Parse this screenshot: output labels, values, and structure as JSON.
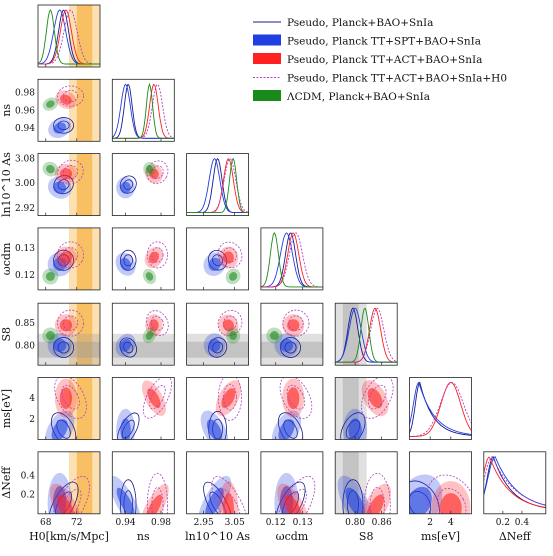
{
  "chart_data": {
    "type": "triangle-corner",
    "parameters": [
      {
        "key": "H0",
        "label": "H0[km/s/Mpc]",
        "ticks": [
          "68",
          "72"
        ],
        "range": [
          67,
          75
        ]
      },
      {
        "key": "ns",
        "label": "ns",
        "ticks": [
          "0.94",
          "0.98"
        ],
        "range": [
          0.925,
          0.995
        ]
      },
      {
        "key": "lnAs",
        "label": "ln10^10 As",
        "ticks": [
          "2.95",
          "3.05"
        ],
        "range": [
          2.895,
          3.095
        ]
      },
      {
        "key": "wcdm",
        "label": "ωcdm",
        "ticks": [
          "0.12",
          "0.13"
        ],
        "range": [
          0.1145,
          0.1375
        ]
      },
      {
        "key": "S8",
        "label": "S8",
        "ticks": [
          "0.80",
          "0.86"
        ],
        "range": [
          0.755,
          0.895
        ]
      },
      {
        "key": "ms",
        "label": "ms[eV]",
        "ticks": [
          "2",
          "4"
        ],
        "range": [
          0,
          6
        ]
      },
      {
        "key": "dNeff",
        "label": "ΔNeff",
        "ticks": [
          "0.2",
          "0.4"
        ],
        "range": [
          0,
          0.65
        ]
      }
    ],
    "row_ticks": {
      "ns": [
        "0.98",
        "0.96",
        "0.94"
      ],
      "lnAs": [
        "3.08",
        "3.00",
        "2.92"
      ],
      "wcdm": [
        "0.13",
        "0.12"
      ],
      "S8": [
        "0.85",
        "0.80"
      ],
      "ms": [
        "4",
        "2"
      ],
      "dNeff": [
        "0.4",
        "0.2"
      ]
    },
    "series": [
      {
        "name": "Pseudo, Planck+BAO+SnIa",
        "color": "#1a1a8c",
        "style": "line",
        "mean": {
          "H0": 70.3,
          "ns": 0.943,
          "lnAs": 2.995,
          "wcdm": 0.1255,
          "S8": 0.795,
          "ms": 1.0,
          "dNeff": 0.1
        }
      },
      {
        "name": "Pseudo, Planck TT+SPT+BAO+SnIa",
        "color": "#1f3fe0",
        "style": "filled",
        "mean": {
          "H0": 69.8,
          "ns": 0.94,
          "lnAs": 2.985,
          "wcdm": 0.124,
          "S8": 0.8,
          "ms": 0.9,
          "dNeff": 0.12
        }
      },
      {
        "name": "Pseudo, Planck TT+ACT+BAO+SnIa",
        "color": "#ff2020",
        "style": "filled",
        "mean": {
          "H0": 70.6,
          "ns": 0.972,
          "lnAs": 3.03,
          "wcdm": 0.1265,
          "S8": 0.845,
          "ms": 4.0,
          "dNeff": 0.06
        }
      },
      {
        "name": "Pseudo, Planck TT+ACT+BAO+SnIa+H0",
        "color": "#b040c0",
        "style": "dashed",
        "mean": {
          "H0": 71.2,
          "ns": 0.976,
          "lnAs": 3.035,
          "wcdm": 0.1275,
          "S8": 0.85,
          "ms": 4.1,
          "dNeff": 0.09
        }
      },
      {
        "name": "ΛCDM, Planck+BAO+SnIa",
        "color": "#1a8a1a",
        "style": "filled",
        "mean": {
          "H0": 68.6,
          "ns": 0.967,
          "lnAs": 3.045,
          "wcdm": 0.1195,
          "S8": 0.822,
          "ms": null,
          "dNeff": null
        }
      }
    ],
    "bands": {
      "H0": {
        "center": 73.0,
        "sigma": 1.0,
        "color": "#f5a623"
      },
      "S8": {
        "center": 0.79,
        "sigma": 0.018,
        "color": "#999999"
      }
    },
    "legend_position": "top-right"
  }
}
